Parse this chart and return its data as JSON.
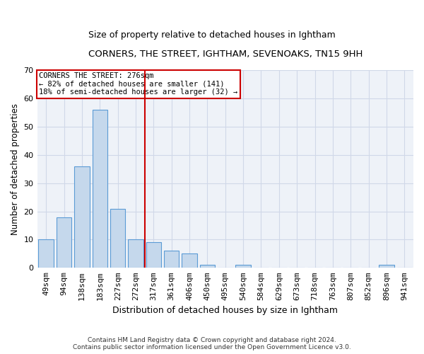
{
  "title1": "CORNERS, THE STREET, IGHTHAM, SEVENOAKS, TN15 9HH",
  "title2": "Size of property relative to detached houses in Ightham",
  "xlabel": "Distribution of detached houses by size in Ightham",
  "ylabel": "Number of detached properties",
  "categories": [
    "49sqm",
    "94sqm",
    "138sqm",
    "183sqm",
    "227sqm",
    "272sqm",
    "317sqm",
    "361sqm",
    "406sqm",
    "450sqm",
    "495sqm",
    "540sqm",
    "584sqm",
    "629sqm",
    "673sqm",
    "718sqm",
    "763sqm",
    "807sqm",
    "852sqm",
    "896sqm",
    "941sqm"
  ],
  "values": [
    10,
    18,
    36,
    56,
    21,
    10,
    9,
    6,
    5,
    1,
    0,
    1,
    0,
    0,
    0,
    0,
    0,
    0,
    0,
    1,
    0
  ],
  "bar_color": "#c5d8ec",
  "bar_edge_color": "#5b9bd5",
  "vline_x": 5.5,
  "vline_color": "#cc0000",
  "annotation_title": "CORNERS THE STREET: 276sqm",
  "annotation_line1": "← 82% of detached houses are smaller (141)",
  "annotation_line2": "18% of semi-detached houses are larger (32) →",
  "annotation_box_color": "#ffffff",
  "annotation_box_edge": "#cc0000",
  "footnote1": "Contains HM Land Registry data © Crown copyright and database right 2024.",
  "footnote2": "Contains public sector information licensed under the Open Government Licence v3.0.",
  "ylim": [
    0,
    70
  ],
  "yticks": [
    0,
    10,
    20,
    30,
    40,
    50,
    60,
    70
  ],
  "grid_color": "#d0d8e8",
  "background_color": "#eef2f8",
  "title1_fontsize": 9.5,
  "title2_fontsize": 9.0,
  "ylabel_fontsize": 8.5,
  "xlabel_fontsize": 9.0,
  "tick_fontsize": 8.0,
  "annot_fontsize": 7.5,
  "footnote_fontsize": 6.5
}
